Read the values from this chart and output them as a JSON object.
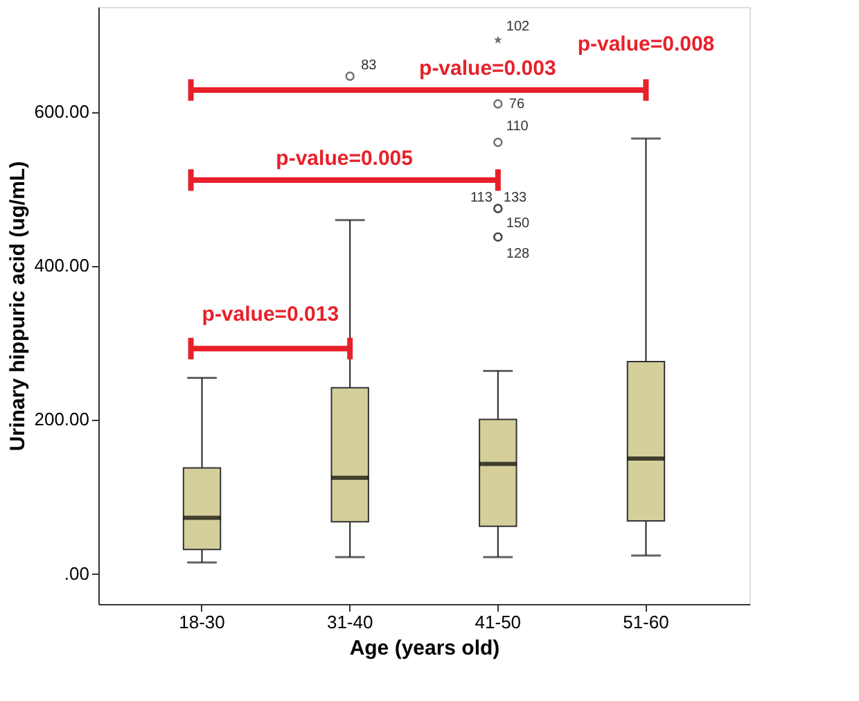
{
  "chart_data": {
    "type": "box",
    "xlabel": "Age (years old)",
    "ylabel": "Urinary hippuric acid (ug/mL)",
    "categories": [
      "18-30",
      "31-40",
      "41-50",
      "51-60"
    ],
    "series": [
      {
        "color": "#d5cf9c",
        "boxes": [
          {
            "low": 14,
            "q1": 31,
            "median": 72,
            "q3": 137,
            "high": 254
          },
          {
            "low": 21,
            "q1": 67,
            "median": 124,
            "q3": 241,
            "high": 459,
            "outliers": [
              646
            ]
          },
          {
            "low": 21,
            "q1": 61,
            "median": 142,
            "q3": 200,
            "high": 263,
            "outliers": [
              610,
              560,
              474,
              474,
              437,
              437
            ]
          },
          {
            "low": 23,
            "q1": 68,
            "median": 149,
            "q3": 275,
            "high": 565
          }
        ]
      },
      {
        "type": "scatter",
        "marker": "star",
        "color": "#333333",
        "x": [
          "41-50"
        ],
        "values": [
          693
        ]
      }
    ],
    "ylim": [
      -40,
      736
    ],
    "yticks": [
      {
        "value": 0,
        "label": ".00"
      },
      {
        "value": 200,
        "label": "200.00"
      },
      {
        "value": 400,
        "label": "400.00"
      },
      {
        "value": 600,
        "label": "600.00"
      }
    ],
    "grid": false,
    "annotations": [
      "83",
      "102",
      "76",
      "110",
      "113",
      "133",
      "150",
      "128",
      "p-value=0.013",
      "p-value=0.005",
      "p-value=0.003",
      "p-value=0.008"
    ]
  }
}
